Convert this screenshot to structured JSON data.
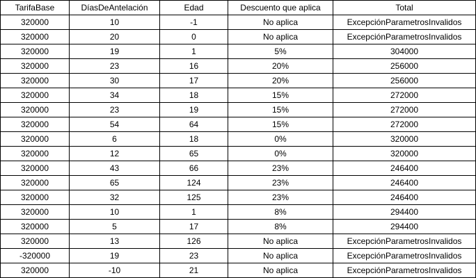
{
  "table": {
    "headers": [
      "TarifaBase",
      "DíasDeAntelación",
      "Edad",
      "Descuento que aplica",
      "Total"
    ],
    "rows": [
      [
        "320000",
        "10",
        "-1",
        "No aplica",
        "ExcepciónParametrosInvalidos"
      ],
      [
        "320000",
        "20",
        "0",
        "No aplica",
        "ExcepciónParametrosInvalidos"
      ],
      [
        "320000",
        "19",
        "1",
        "5%",
        "304000"
      ],
      [
        "320000",
        "23",
        "16",
        "20%",
        "256000"
      ],
      [
        "320000",
        "30",
        "17",
        "20%",
        "256000"
      ],
      [
        "320000",
        "34",
        "18",
        "15%",
        "272000"
      ],
      [
        "320000",
        "23",
        "19",
        "15%",
        "272000"
      ],
      [
        "320000",
        "54",
        "64",
        "15%",
        "272000"
      ],
      [
        "320000",
        "6",
        "18",
        "0%",
        "320000"
      ],
      [
        "320000",
        "12",
        "65",
        "0%",
        "320000"
      ],
      [
        "320000",
        "43",
        "66",
        "23%",
        "246400"
      ],
      [
        "320000",
        "65",
        "124",
        "23%",
        "246400"
      ],
      [
        "320000",
        "32",
        "125",
        "23%",
        "246400"
      ],
      [
        "320000",
        "10",
        "1",
        "8%",
        "294400"
      ],
      [
        "320000",
        "5",
        "17",
        "8%",
        "294400"
      ],
      [
        "320000",
        "13",
        "126",
        "No aplica",
        "ExcepciónParametrosInvalidos"
      ],
      [
        "-320000",
        "19",
        "23",
        "No aplica",
        "ExcepciónParametrosInvalidos"
      ],
      [
        "320000",
        "-10",
        "21",
        "No aplica",
        "ExcepciónParametrosInvalidos"
      ]
    ]
  }
}
